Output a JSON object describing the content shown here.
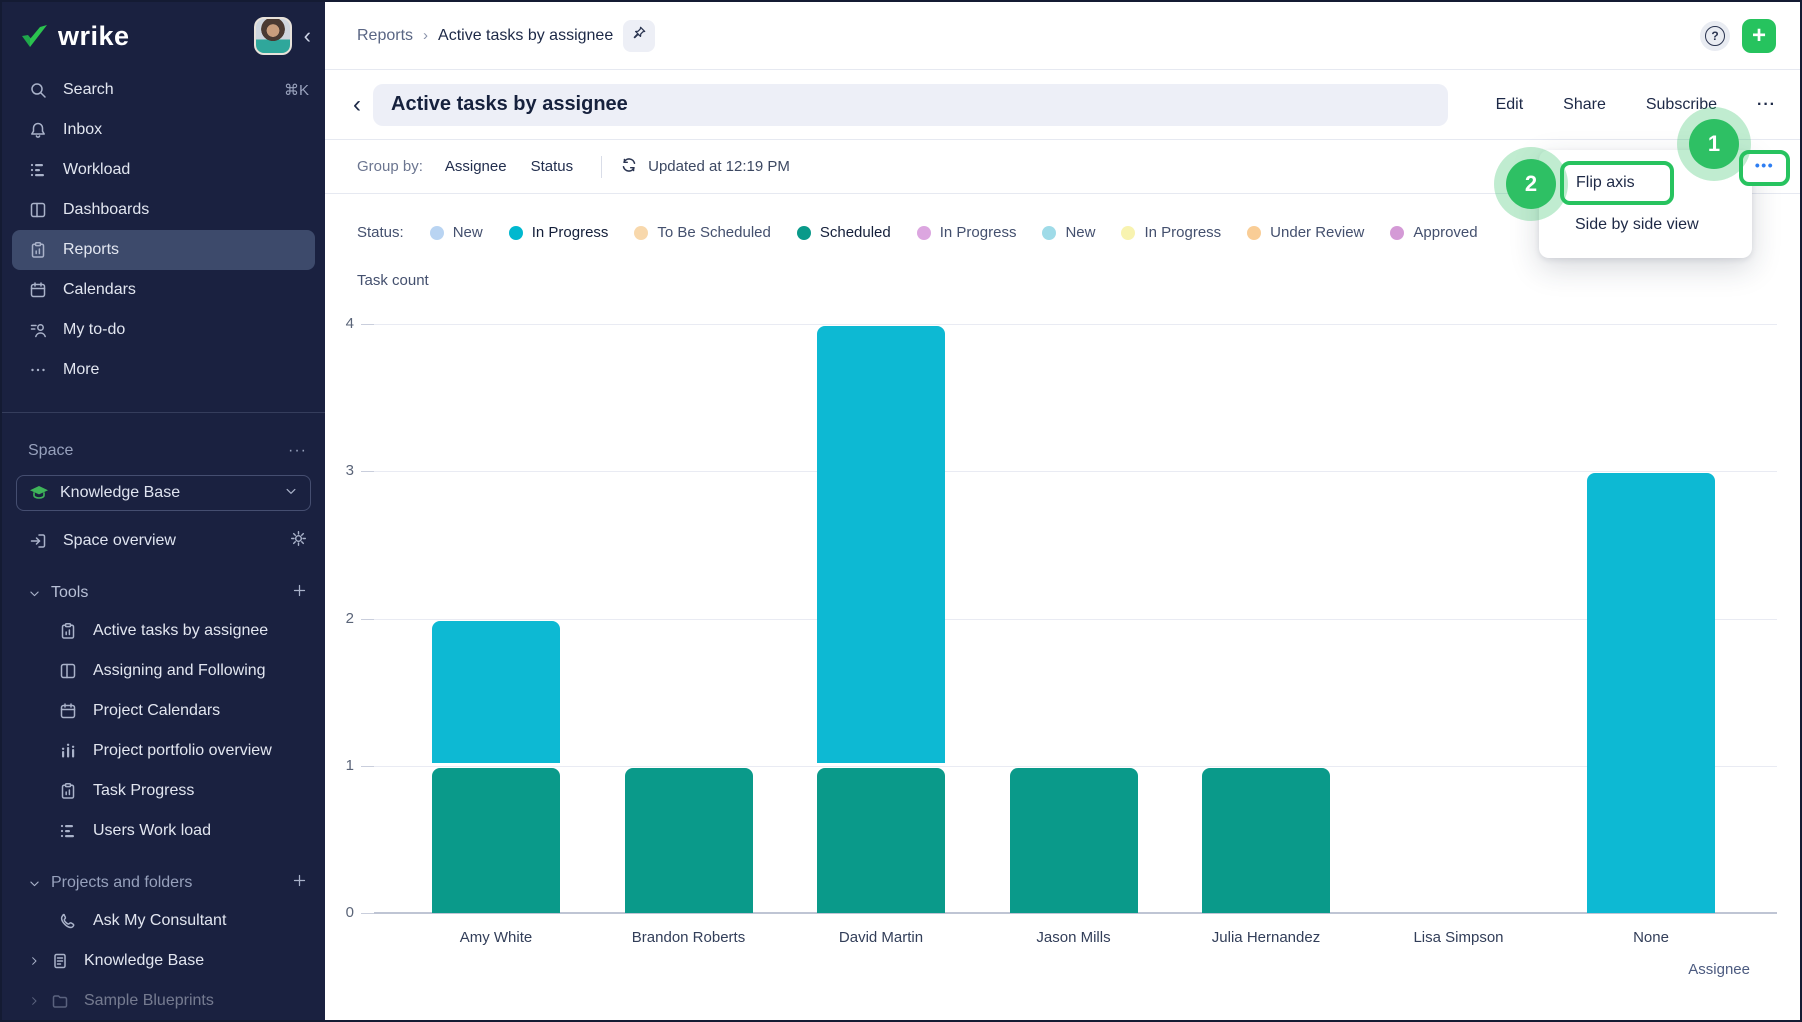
{
  "logo": {
    "text": "wrike"
  },
  "sidebar": {
    "nav": [
      {
        "label": "Search",
        "shortcut": "⌘K"
      },
      {
        "label": "Inbox"
      },
      {
        "label": "Workload"
      },
      {
        "label": "Dashboards"
      },
      {
        "label": "Reports"
      },
      {
        "label": "Calendars"
      },
      {
        "label": "My to-do"
      },
      {
        "label": "More"
      }
    ],
    "space_label": "Space",
    "space_menu": "···",
    "space_name": "Knowledge Base",
    "overview_label": "Space overview",
    "tools_label": "Tools",
    "tools": [
      {
        "label": "Active tasks by assignee"
      },
      {
        "label": "Assigning and Following"
      },
      {
        "label": "Project Calendars"
      },
      {
        "label": "Project portfolio overview"
      },
      {
        "label": "Task Progress"
      },
      {
        "label": "Users Work load"
      }
    ],
    "projects_label": "Projects and folders",
    "projects": [
      {
        "label": "Ask My Consultant"
      },
      {
        "label": "Knowledge Base"
      },
      {
        "label": "Sample Blueprints"
      }
    ]
  },
  "header": {
    "breadcrumb_root": "Reports",
    "breadcrumb_current": "Active tasks by assignee"
  },
  "titlebar": {
    "title": "Active tasks by assignee",
    "back": "‹",
    "actions": [
      {
        "label": "Edit"
      },
      {
        "label": "Share"
      },
      {
        "label": "Subscribe"
      }
    ],
    "more": "···"
  },
  "toolbar": {
    "group_by_label": "Group by:",
    "fields": [
      {
        "label": "Assignee"
      },
      {
        "label": "Status"
      }
    ],
    "updated": "Updated at 12:19 PM"
  },
  "legend": {
    "label": "Status:",
    "items": [
      {
        "label": "New",
        "color": "#b9d4f2",
        "active": false
      },
      {
        "label": "In Progress",
        "color": "#00b8cf",
        "active": true
      },
      {
        "label": "To Be Scheduled",
        "color": "#f8d8ac",
        "active": false
      },
      {
        "label": "Scheduled",
        "color": "#0a9a8a",
        "active": true
      },
      {
        "label": "In Progress",
        "color": "#dca6e0",
        "active": false
      },
      {
        "label": "New",
        "color": "#9fdbe8",
        "active": false
      },
      {
        "label": "In Progress",
        "color": "#f8f3b0",
        "active": false
      },
      {
        "label": "Under Review",
        "color": "#f9cd96",
        "active": false
      },
      {
        "label": "Approved",
        "color": "#d49ad6",
        "active": false
      }
    ]
  },
  "chart_data": {
    "type": "bar",
    "stacked": true,
    "categories": [
      "Amy White",
      "Brandon Roberts",
      "David Martin",
      "Jason Mills",
      "Julia Hernandez",
      "Lisa Simpson",
      "None"
    ],
    "series": [
      {
        "name": "Scheduled",
        "color": "#0a9a8a",
        "values": [
          1,
          1,
          1,
          1,
          1,
          0,
          0
        ]
      },
      {
        "name": "In Progress",
        "color": "#0db9d3",
        "values": [
          1,
          0,
          3,
          0,
          0,
          0,
          3
        ]
      }
    ],
    "ylabel": "Task count",
    "xlabel": "Assignee",
    "ylim": [
      0,
      4
    ],
    "yticks": [
      0,
      1,
      2,
      3,
      4
    ],
    "grid": true,
    "legend_position": "top"
  },
  "menu": {
    "items": [
      {
        "label": "Flip axis"
      },
      {
        "label": "Side by side view"
      }
    ],
    "dots": "•••"
  },
  "annotations": {
    "step1": "1",
    "step2": "2"
  },
  "colors": {
    "accent_green": "#27c35f",
    "step_green": "#2ec064",
    "cyan": "#0db9d3",
    "teal": "#0a9a8a",
    "sidebar_bg": "#1a2140",
    "dots_blue": "#2e7ef2"
  }
}
